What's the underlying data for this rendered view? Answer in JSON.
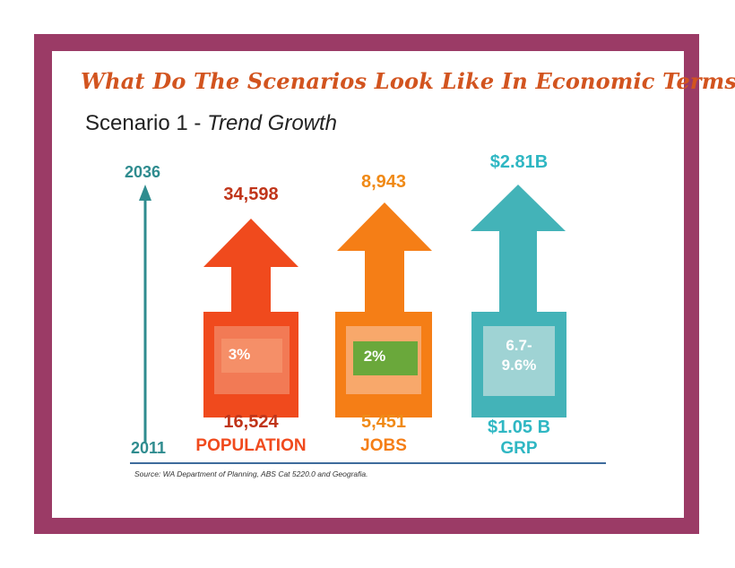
{
  "title": "What Do The Scenarios Look Like In Economic Terms?",
  "subtitle": {
    "prefix": "Scenario 1 - ",
    "name": "Trend Growth"
  },
  "timeline": {
    "end_year": "2036",
    "start_year": "2011"
  },
  "metrics": [
    {
      "top_value": "34,598",
      "bottom_value": "16,524",
      "label": "POPULATION",
      "growth": "3%",
      "color": "#f04a1d"
    },
    {
      "top_value": "8,943",
      "bottom_value": "5,451",
      "label": "JOBS",
      "growth": "2%",
      "color": "#f57e16"
    },
    {
      "top_value": "$2.81B",
      "bottom_value": "$1.05 B",
      "label": "GRP",
      "growth_line1": "6.7-",
      "growth_line2": "9.6%",
      "color": "#43b3b8"
    }
  ],
  "source": "Source: WA Department of Planning, ABS Cat 5220.0 and Geografia.",
  "colors": {
    "frame": "#9b3b66",
    "title": "#d2541f",
    "timeline": "#2f8c8f",
    "population_text": "#c0351a",
    "jobs_text": "#f08a17",
    "grp_text": "#2fb7c3",
    "jobs_badge": "#6aa83b",
    "baseline": "#3e6b9c"
  }
}
